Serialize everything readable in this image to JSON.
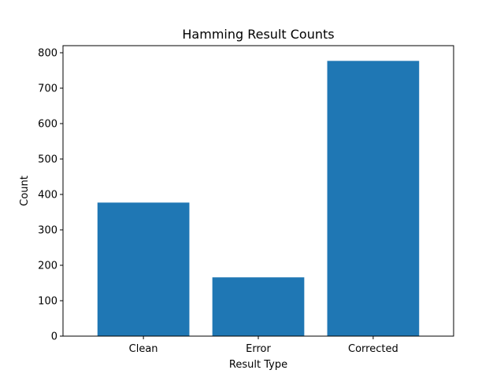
{
  "chart_data": {
    "type": "bar",
    "title": "Hamming Result Counts",
    "xlabel": "Result Type",
    "ylabel": "Count",
    "categories": [
      "Clean",
      "Error",
      "Corrected"
    ],
    "values": [
      377,
      166,
      777
    ],
    "ylim": [
      0,
      820
    ],
    "yticks": [
      0,
      100,
      200,
      300,
      400,
      500,
      600,
      700,
      800
    ],
    "bar_color": "#1f77b4",
    "grid": false,
    "legend": "none"
  }
}
